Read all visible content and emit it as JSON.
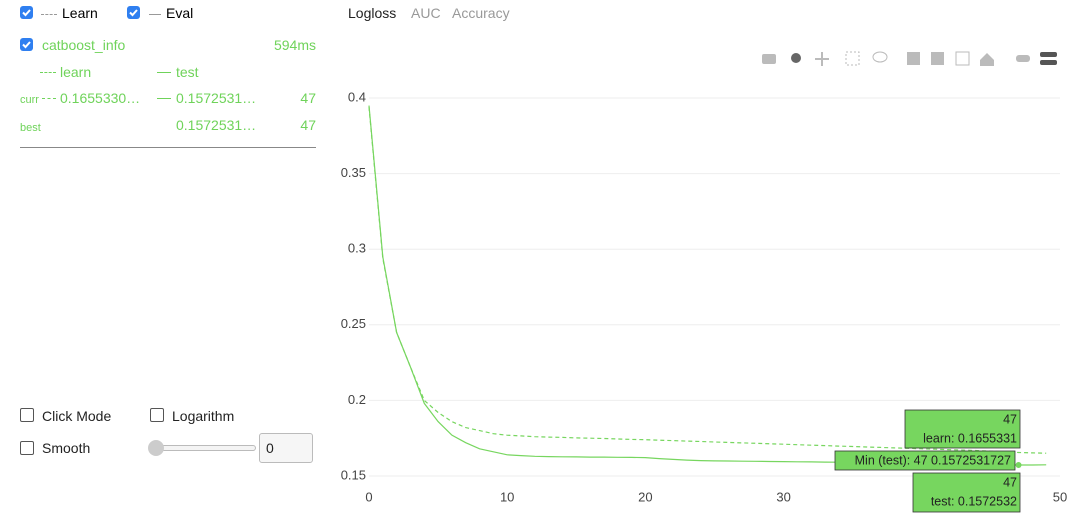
{
  "header": {
    "learn_label": "Learn",
    "eval_label": "Eval"
  },
  "tabs": [
    "Logloss",
    "AUC",
    "Accuracy"
  ],
  "panel": {
    "run_name": "catboost_info",
    "time": "594ms",
    "col_learn": "learn",
    "col_test": "test",
    "curr_label": "curr",
    "curr_learn": "0.1655330…",
    "curr_test": "0.1572531…",
    "curr_iter": 47,
    "best_label": "best",
    "best_test": "0.1572531…",
    "best_iter": 47
  },
  "controls": {
    "click_mode": "Click Mode",
    "logarithm": "Logarithm",
    "smooth": "Smooth",
    "smooth_value": 0
  },
  "chart_data": {
    "type": "line",
    "x": [
      0,
      1,
      2,
      3,
      4,
      5,
      6,
      7,
      8,
      9,
      10,
      11,
      12,
      13,
      14,
      15,
      16,
      17,
      18,
      19,
      20,
      21,
      22,
      23,
      24,
      25,
      26,
      27,
      28,
      29,
      30,
      31,
      32,
      33,
      34,
      35,
      36,
      37,
      38,
      39,
      40,
      41,
      42,
      43,
      44,
      45,
      46,
      47,
      48,
      49
    ],
    "series": [
      {
        "name": "learn",
        "color": "#77d65f",
        "dash": true,
        "values": [
          0.394,
          0.294,
          0.245,
          0.222,
          0.2,
          0.192,
          0.186,
          0.182,
          0.18,
          0.178,
          0.177,
          0.1765,
          0.176,
          0.1757,
          0.1755,
          0.1752,
          0.175,
          0.1748,
          0.1745,
          0.1742,
          0.174,
          0.1737,
          0.1734,
          0.1731,
          0.1728,
          0.1725,
          0.1722,
          0.1719,
          0.1716,
          0.1713,
          0.171,
          0.1707,
          0.1704,
          0.1701,
          0.1698,
          0.1695,
          0.1692,
          0.1689,
          0.1686,
          0.1683,
          0.168,
          0.1677,
          0.1674,
          0.1671,
          0.1668,
          0.1664,
          0.166,
          0.1655331,
          0.1653,
          0.1651
        ]
      },
      {
        "name": "test",
        "color": "#77d65f",
        "dash": false,
        "values": [
          0.395,
          0.295,
          0.245,
          0.222,
          0.198,
          0.186,
          0.177,
          0.172,
          0.168,
          0.166,
          0.164,
          0.1635,
          0.163,
          0.1628,
          0.1627,
          0.1626,
          0.1625,
          0.1625,
          0.1624,
          0.1623,
          0.1622,
          0.1615,
          0.161,
          0.1605,
          0.1602,
          0.16,
          0.1599,
          0.1598,
          0.1597,
          0.1596,
          0.1595,
          0.1594,
          0.1593,
          0.1592,
          0.1591,
          0.159,
          0.1589,
          0.1588,
          0.1587,
          0.1586,
          0.1585,
          0.1583,
          0.1581,
          0.1579,
          0.1577,
          0.1575,
          0.1574,
          0.1572531727,
          0.1573,
          0.1574
        ]
      }
    ],
    "xlim": [
      0,
      50
    ],
    "xticks": [
      0,
      10,
      20,
      30,
      40,
      50
    ],
    "ylim": [
      0.15,
      0.4
    ],
    "yticks": [
      0.15,
      0.2,
      0.25,
      0.3,
      0.35,
      0.4
    ],
    "grid": true,
    "tooltips": [
      {
        "lines": [
          "47",
          "learn: 0.1655331"
        ]
      },
      {
        "lines": [
          "Min (test): 47 0.1572531727"
        ]
      },
      {
        "lines": [
          "47",
          "test: 0.1572532"
        ]
      }
    ]
  }
}
